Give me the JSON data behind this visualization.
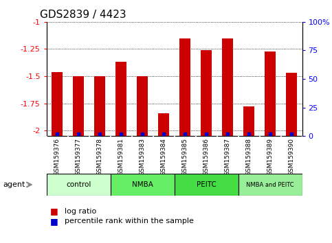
{
  "title": "GDS2839 / 4423",
  "samples": [
    "GSM159376",
    "GSM159377",
    "GSM159378",
    "GSM159381",
    "GSM159383",
    "GSM159384",
    "GSM159385",
    "GSM159386",
    "GSM159387",
    "GSM159388",
    "GSM159389",
    "GSM159390"
  ],
  "log_ratios": [
    -1.46,
    -1.5,
    -1.5,
    -1.37,
    -1.5,
    -1.84,
    -1.15,
    -1.26,
    -1.15,
    -1.78,
    -1.27,
    -1.47
  ],
  "percentile_ranks": [
    2,
    2,
    2,
    2,
    2,
    2,
    2,
    2,
    2,
    2,
    2,
    2
  ],
  "bar_color": "#cc0000",
  "percentile_color": "#0000cc",
  "ylim_left": [
    -2.05,
    -1.0
  ],
  "ylim_right": [
    0,
    100
  ],
  "yticks_left": [
    -2.0,
    -1.75,
    -1.5,
    -1.25,
    -1.0
  ],
  "yticks_right": [
    0,
    25,
    50,
    75,
    100
  ],
  "ytick_labels_left": [
    "-2",
    "-1.75",
    "-1.5",
    "-1.25",
    "-1"
  ],
  "ytick_labels_right": [
    "0",
    "25",
    "50",
    "75",
    "100%"
  ],
  "groups": [
    {
      "label": "control",
      "start": 0,
      "end": 3,
      "color": "#ccffcc"
    },
    {
      "label": "NMBA",
      "start": 3,
      "end": 6,
      "color": "#66ee66"
    },
    {
      "label": "PEITC",
      "start": 6,
      "end": 9,
      "color": "#44dd44"
    },
    {
      "label": "NMBA and PEITC",
      "start": 9,
      "end": 12,
      "color": "#99ee99"
    }
  ],
  "agent_label": "agent",
  "legend_log_ratio": "log ratio",
  "legend_percentile": "percentile rank within the sample",
  "grid_color": "#000000",
  "background_color": "#ffffff",
  "tick_area_color": "#cccccc"
}
